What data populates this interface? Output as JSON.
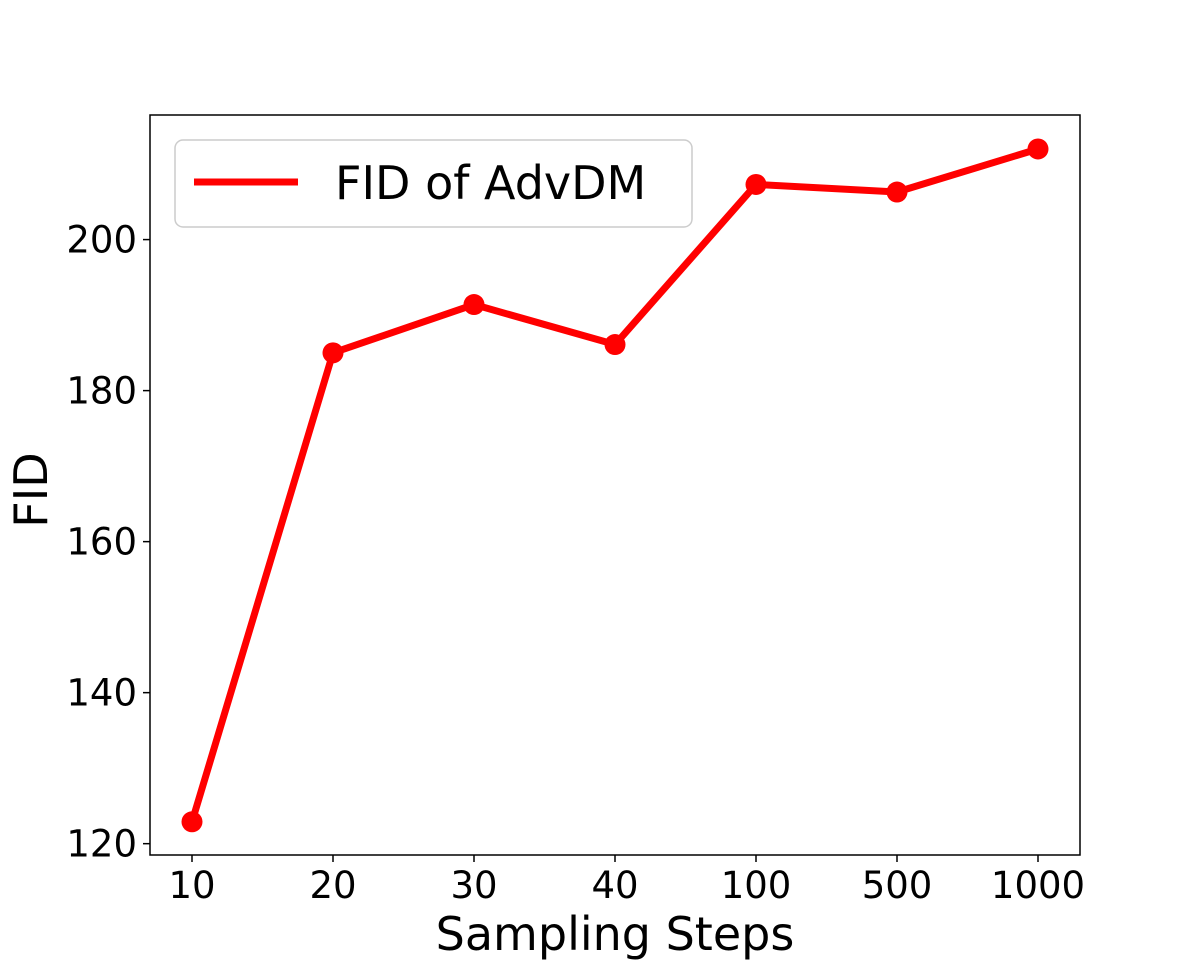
{
  "chart_data": {
    "type": "line",
    "title": "",
    "xlabel": "Sampling Steps",
    "ylabel": "FID",
    "x_scale": "categorical",
    "categories": [
      "10",
      "20",
      "30",
      "40",
      "100",
      "500",
      "1000"
    ],
    "series": [
      {
        "name": "FID of AdvDM",
        "values": [
          122.9,
          185.0,
          191.4,
          186.1,
          207.3,
          206.3,
          212.0
        ],
        "color": "#ff0000",
        "marker": "circle"
      }
    ],
    "yticks": [
      120,
      140,
      160,
      180,
      200
    ],
    "ylim": [
      118.5,
      216.5
    ],
    "grid": false,
    "legend": {
      "position": "top-left"
    }
  }
}
